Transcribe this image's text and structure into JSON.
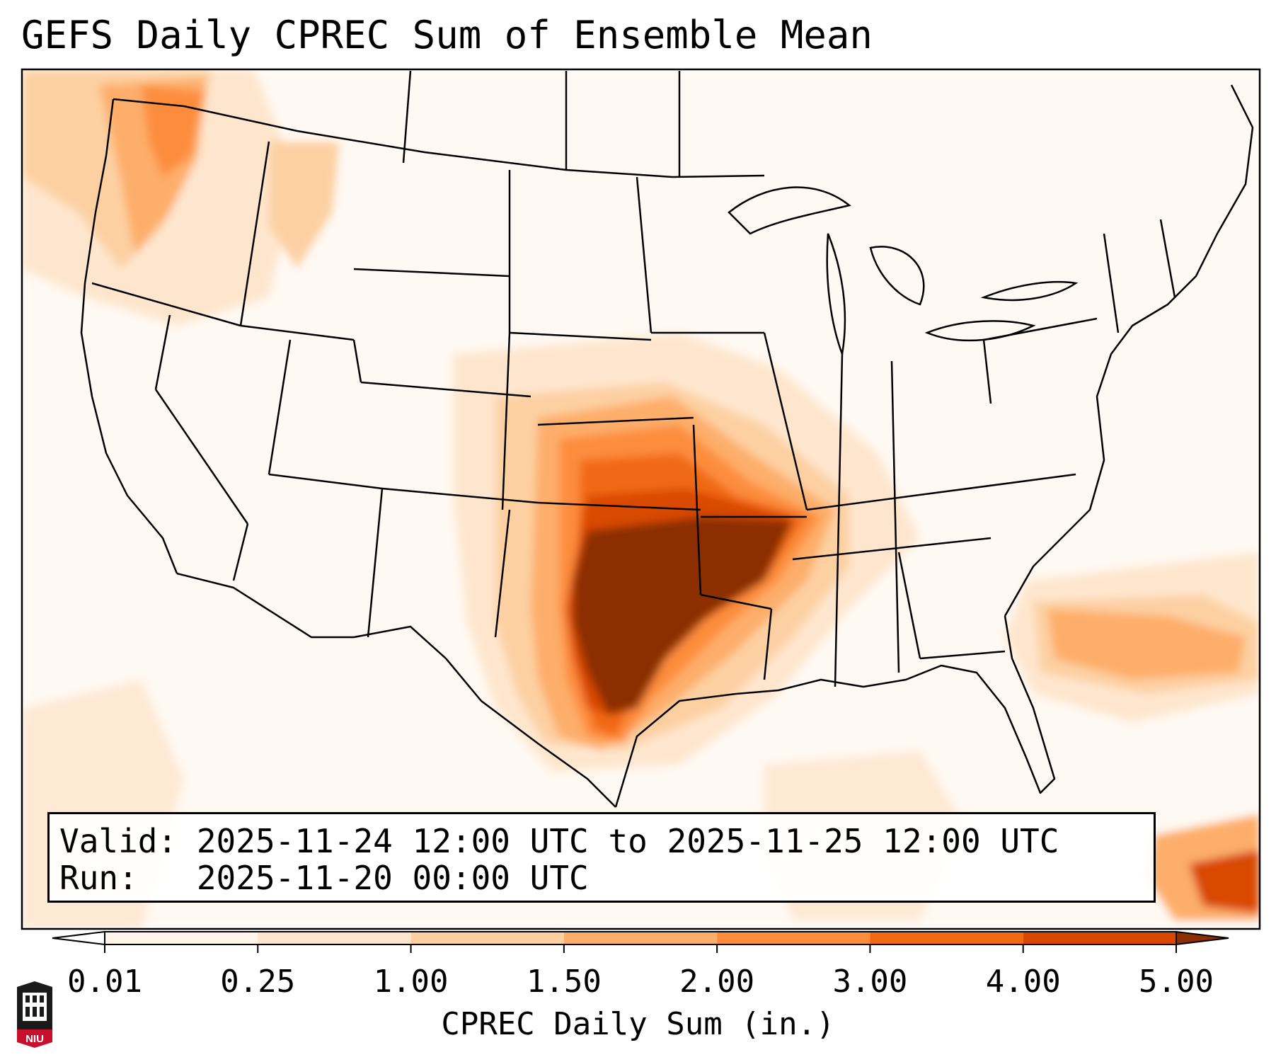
{
  "title": "GEFS Daily CPREC Sum of Ensemble Mean",
  "info": {
    "valid": "Valid: 2025-11-24 12:00 UTC to 2025-11-25 12:00 UTC",
    "run": "Run:   2025-11-20 00:00 UTC"
  },
  "colorbar": {
    "label": "CPREC Daily Sum (in.)",
    "ticks": [
      "0.01",
      "0.25",
      "1.00",
      "1.50",
      "2.00",
      "3.00",
      "4.00",
      "5.00"
    ],
    "colors": [
      "#fff5eb",
      "#fee6ce",
      "#fdd0a2",
      "#fdae6b",
      "#fd8d3c",
      "#f16913",
      "#d94801",
      "#8c2d04"
    ],
    "under_color": "#ffffff",
    "over_color": "#8c2d04"
  },
  "precip_regions": [
    {
      "level": 1,
      "name": "southern-plains-core",
      "description_level": "5.00+"
    },
    {
      "level": 2,
      "name": "ozarks-band"
    }
  ],
  "logo": {
    "text": "NIU"
  },
  "colors": {
    "lightest": "#fff5eb",
    "light": "#fee6ce",
    "pale": "#fdd0a2",
    "medium": "#fdae6b",
    "orange": "#fd8d3c",
    "dark_orange": "#f16913",
    "red_orange": "#d94801",
    "brown": "#8c2d04"
  }
}
